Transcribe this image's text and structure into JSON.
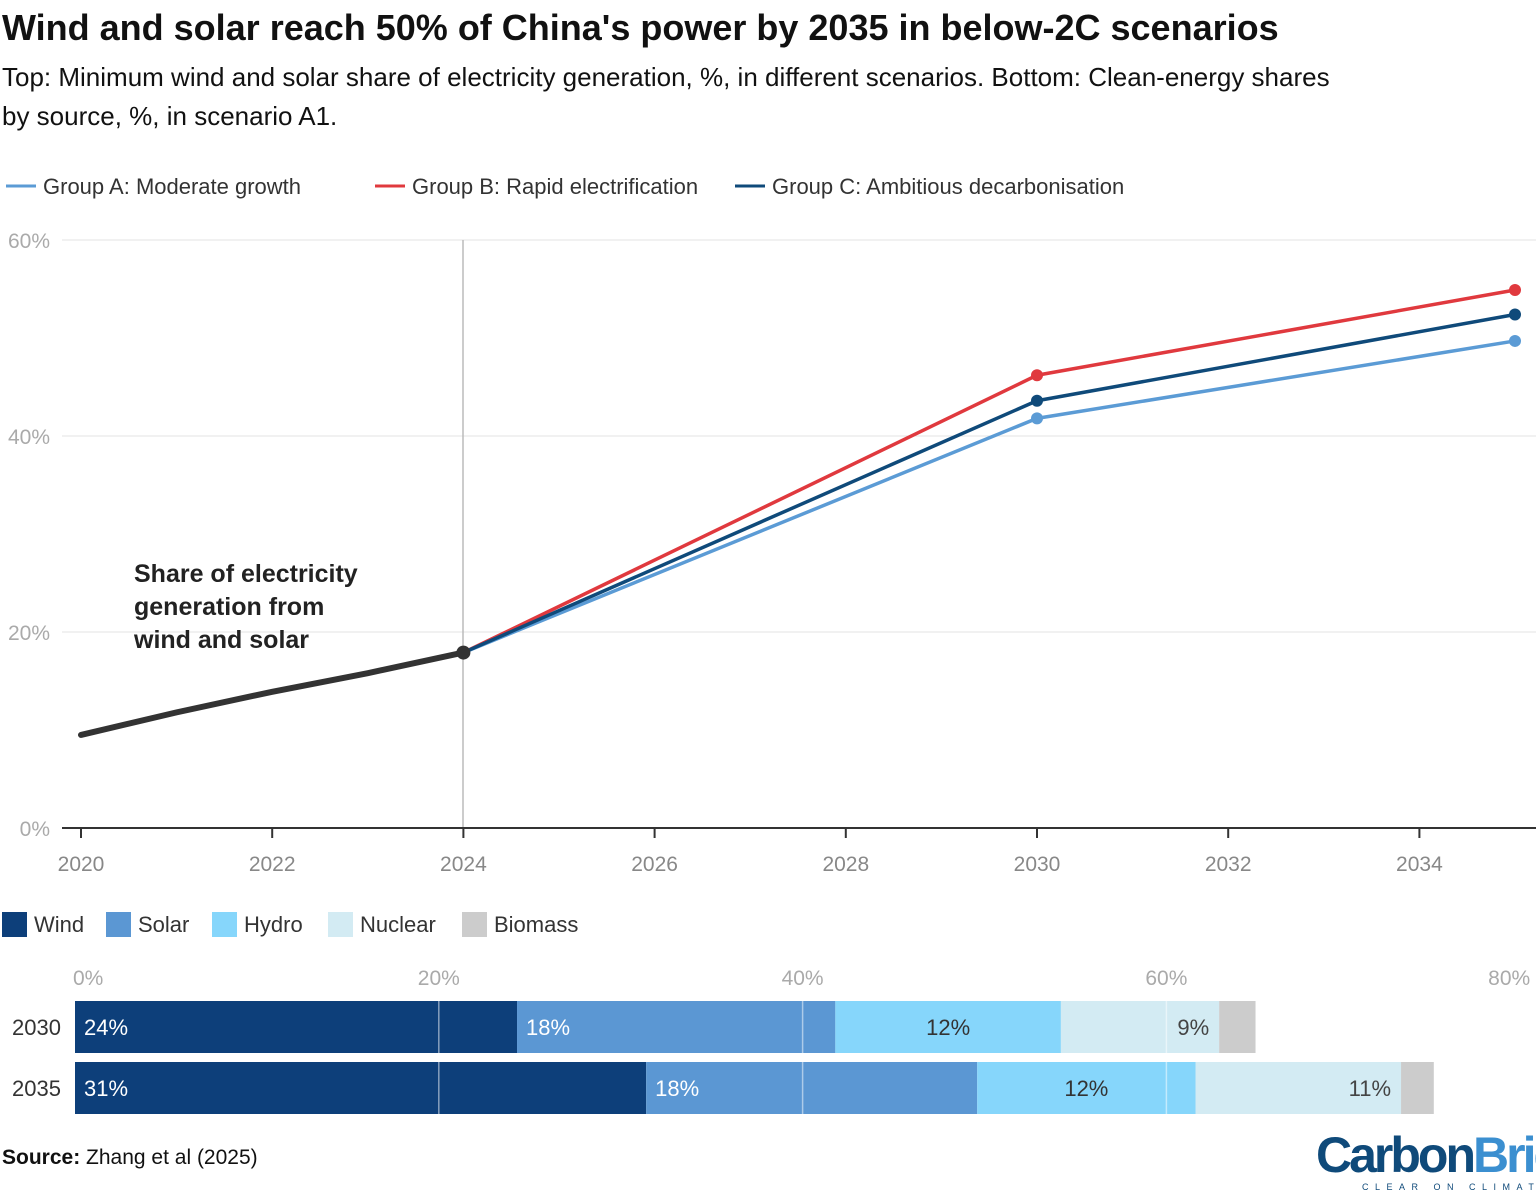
{
  "title": "Wind and solar reach 50% of China's power by 2035 in below-2C scenarios",
  "subtitle_line1": "Top: Minimum wind and solar share of electricity generation, %, in different scenarios. Bottom: Clean-energy shares",
  "subtitle_line2": "by source, %, in scenario A1.",
  "source_label": "Source:",
  "source_text": "Zhang et al (2025)",
  "logo": {
    "brand_a": "Carbon",
    "brand_b": "Brief",
    "tagline": "CLEAR ON CLIMATE"
  },
  "chart_data": [
    {
      "type": "line",
      "ylim": [
        0,
        60
      ],
      "yticks": [
        "0%",
        "20%",
        "40%",
        "60%"
      ],
      "ytick_values": [
        0,
        20,
        40,
        60
      ],
      "xlim": [
        2020,
        2035
      ],
      "xticks": [
        "2020",
        "2022",
        "2024",
        "2026",
        "2028",
        "2030",
        "2032",
        "2034"
      ],
      "xtick_values": [
        2020,
        2022,
        2024,
        2026,
        2028,
        2030,
        2032,
        2034
      ],
      "grid": true,
      "legend_position": "top-left",
      "annotation": [
        "Share of electricity",
        "generation from",
        "wind and solar"
      ],
      "historical": {
        "x": [
          2020,
          2021,
          2022,
          2023,
          2024
        ],
        "y": [
          9.5,
          11.8,
          13.9,
          15.8,
          17.9
        ],
        "color": "#333333"
      },
      "series": [
        {
          "name": "Group A: Moderate growth",
          "x": [
            2024,
            2030,
            2035
          ],
          "y": [
            17.9,
            41.8,
            49.7
          ],
          "color": "#5b9bd5"
        },
        {
          "name": "Group B: Rapid electrification",
          "x": [
            2024,
            2030,
            2035
          ],
          "y": [
            17.9,
            46.2,
            54.9
          ],
          "color": "#e0393e"
        },
        {
          "name": "Group C: Ambitious decarbonisation",
          "x": [
            2024,
            2030,
            2035
          ],
          "y": [
            17.9,
            43.6,
            52.4
          ],
          "color": "#0f4a7a"
        }
      ]
    },
    {
      "type": "bar",
      "orientation": "horizontal-stacked",
      "xlim": [
        0,
        80
      ],
      "xticks": [
        "0%",
        "20%",
        "40%",
        "60%",
        "80%"
      ],
      "xtick_values": [
        0,
        20,
        40,
        60,
        80
      ],
      "categories": [
        "2030",
        "2035"
      ],
      "legend_position": "top-left",
      "series": [
        {
          "name": "Wind",
          "values": [
            24.3,
            31.4
          ],
          "labels": [
            "24%",
            "31%"
          ],
          "color": "#0d3f7a",
          "text": "#ffffff",
          "align": "left"
        },
        {
          "name": "Solar",
          "values": [
            17.5,
            18.2
          ],
          "labels": [
            "18%",
            "18%"
          ],
          "color": "#5b97d3",
          "text": "#ffffff",
          "align": "left"
        },
        {
          "name": "Hydro",
          "values": [
            12.4,
            12.0
          ],
          "labels": [
            "12%",
            "12%"
          ],
          "color": "#86d6fb",
          "text": "#333333",
          "align": "center"
        },
        {
          "name": "Nuclear",
          "values": [
            8.7,
            11.3
          ],
          "labels": [
            "9%",
            "11%"
          ],
          "color": "#d3ebf3",
          "text": "#444444",
          "align": "right"
        },
        {
          "name": "Biomass",
          "values": [
            2.0,
            1.8
          ],
          "labels": [
            "",
            ""
          ],
          "color": "#cccccc",
          "text": "#333333",
          "align": "right"
        }
      ]
    }
  ]
}
